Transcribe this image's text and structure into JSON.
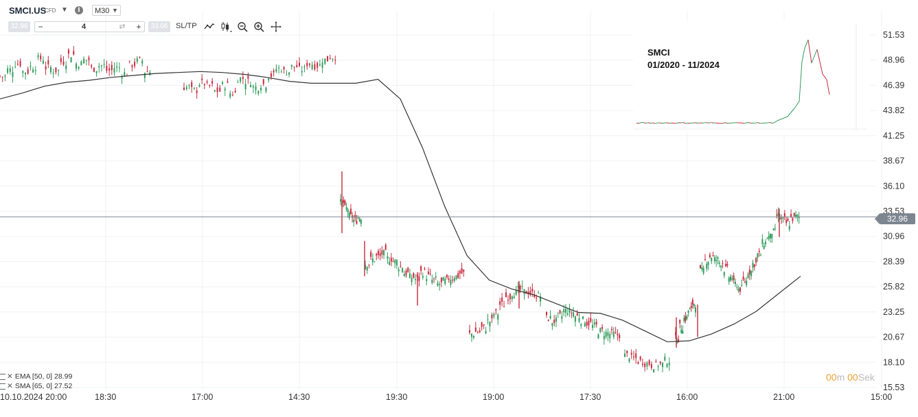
{
  "header": {
    "symbol": "SMCI.US",
    "instrument_type": "CFD",
    "timeframe": "M30"
  },
  "order_bar": {
    "bid": "32.96",
    "quantity": "4",
    "ask": "33.06",
    "sltp_label": "SL/TP",
    "minus": "−",
    "plus": "+",
    "swap": "⇄"
  },
  "toolbar_icons": [
    "line-chart-icon",
    "candlestick-icon",
    "zoom-out-icon",
    "zoom-in-icon",
    "crosshair-icon"
  ],
  "inset": {
    "title_line1": "SMCI",
    "title_line2": "01/2020 - 11/2024"
  },
  "indicators": [
    {
      "label": "EMA [50, 0] 28.99"
    },
    {
      "label": "SMA [65, 0] 27.52"
    }
  ],
  "timer": {
    "m_val": "00",
    "m_unit": "m",
    "s_val": "00",
    "s_unit": "Sek"
  },
  "current_price": "32.96",
  "colors": {
    "up": "#2e9c5a",
    "down": "#c8283c",
    "ma": "#333333",
    "grid": "#eef0f2",
    "price_line": "#7c8590"
  },
  "chart_data": {
    "type": "candlestick",
    "y_axis_labels": [
      "51.53",
      "48.96",
      "46.39",
      "43.82",
      "41.25",
      "38.67",
      "36.10",
      "33.53",
      "30.96",
      "28.39",
      "25.82",
      "23.25",
      "20.67",
      "18.10",
      "15.53"
    ],
    "x_axis_labels": [
      "10.10.2024 20:00",
      "18:30",
      "17:00",
      "14:30",
      "19:30",
      "19:00",
      "17:30",
      "16:00",
      "21:00",
      "15:00"
    ],
    "ylim": [
      15.53,
      51.53
    ],
    "current_price": 32.96,
    "close_path": [
      47.3,
      48.0,
      48.6,
      47.8,
      48.3,
      49.1,
      48.2,
      47.9,
      48.8,
      49.5,
      48.6,
      49.0,
      48.1,
      48.4,
      47.9,
      48.2,
      47.6,
      48.5,
      48.9,
      47.8,
      46.2,
      45.9,
      46.6,
      46.3,
      45.8,
      46.4,
      45.6,
      47.1,
      46.8,
      46.2,
      46.5,
      47.4,
      48.1,
      47.8,
      48.3,
      48.0,
      48.6,
      48.4,
      49.0,
      49.3,
      34.4,
      33.8,
      33.0,
      32.6,
      32.9,
      28.2,
      28.6,
      28.9,
      29.2,
      28.7,
      28.4,
      27.9,
      27.2,
      26.8,
      26.6,
      27.3,
      26.9,
      26.5,
      26.1,
      26.4,
      26.7,
      26.9,
      27.2,
      21.0,
      21.2,
      21.6,
      22.3,
      23.1,
      24.0,
      24.8,
      25.2,
      25.5,
      25.3,
      25.1,
      24.9,
      22.6,
      22.3,
      22.8,
      23.4,
      23.2,
      22.8,
      22.4,
      22.1,
      21.8,
      21.3,
      21.1,
      21.0,
      20.9,
      18.8,
      18.5,
      18.2,
      18.0,
      17.8,
      17.9,
      18.3,
      20.5,
      21.7,
      22.6,
      23.4,
      24.1,
      27.4,
      28.5,
      28.9,
      28.6,
      28.3,
      27.6,
      26.8,
      26.1,
      25.6,
      26.4,
      27.4,
      28.2,
      29.1,
      30.3,
      30.9,
      31.4,
      33.1,
      32.6,
      32.3,
      32.8,
      32.96
    ],
    "ma_path": [
      45.0,
      45.6,
      46.3,
      46.7,
      46.9,
      47.2,
      47.4,
      47.6,
      47.7,
      47.8,
      47.7,
      47.5,
      47.2,
      46.8,
      46.6,
      46.6,
      46.6,
      47.0,
      45.0,
      40.0,
      34.0,
      29.0,
      26.5,
      25.6,
      25.0,
      24.1,
      23.2,
      23.1,
      22.4,
      21.3,
      20.2,
      20.3,
      21.0,
      22.0,
      23.3,
      25.1,
      26.9
    ]
  }
}
